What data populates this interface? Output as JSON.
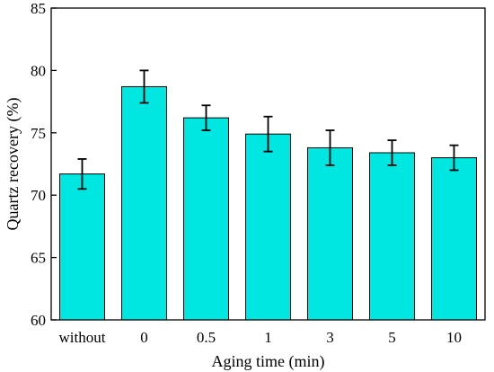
{
  "chart_data": {
    "type": "bar",
    "title": "",
    "xlabel": "Aging time (min)",
    "ylabel": "Quartz recovery (%)",
    "categories": [
      "without",
      "0",
      "0.5",
      "1",
      "3",
      "5",
      "10"
    ],
    "values": [
      71.7,
      78.7,
      76.2,
      74.9,
      73.8,
      73.4,
      73.0
    ],
    "errors": [
      1.2,
      1.3,
      1.0,
      1.4,
      1.4,
      1.0,
      1.0
    ],
    "ylim": [
      60,
      85
    ],
    "yticks": [
      60,
      65,
      70,
      75,
      80,
      85
    ],
    "grid": false,
    "legend": "none",
    "bar_color": "#00e6e0",
    "bar_edge_color": "#000000"
  }
}
